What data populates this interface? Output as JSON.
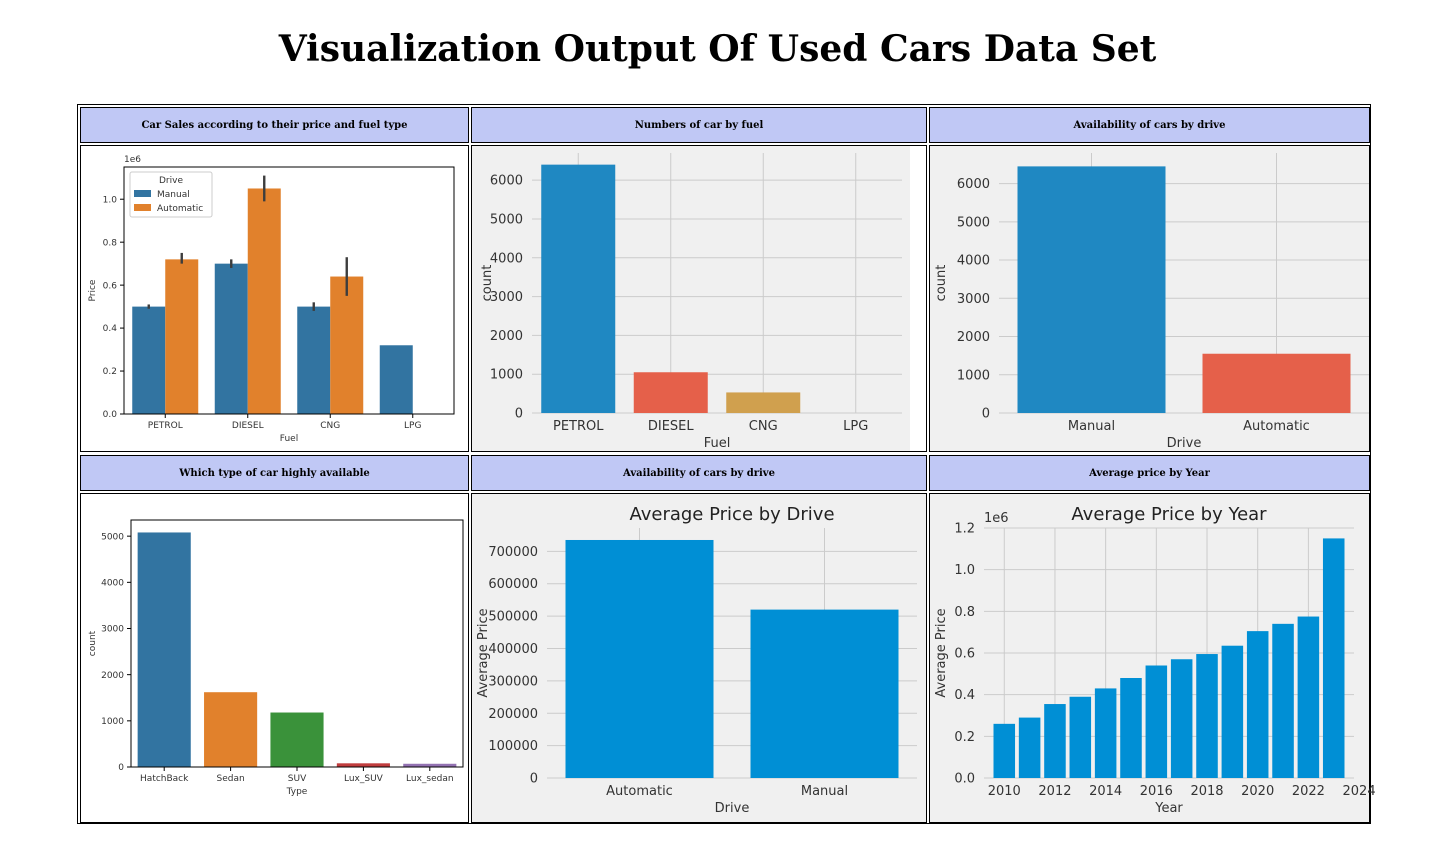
{
  "page": {
    "title": "Visualization Output Of Used Cars Data Set"
  },
  "panels": [
    {
      "header": "Car Sales according to their price and fuel type"
    },
    {
      "header": "Numbers of car by fuel"
    },
    {
      "header": "Availability of cars by drive"
    },
    {
      "header": "Which type of car highly available"
    },
    {
      "header": "Availability of cars by drive"
    },
    {
      "header": "Average price by Year"
    }
  ],
  "chart_data": [
    {
      "type": "bar",
      "title": "",
      "categories": [
        "PETROL",
        "DIESEL",
        "CNG",
        "LPG"
      ],
      "series": [
        {
          "name": "Manual",
          "values": [
            0.5,
            0.7,
            0.5,
            0.32
          ],
          "err_low": [
            0.49,
            0.68,
            0.48,
            null
          ],
          "err_high": [
            0.51,
            0.72,
            0.52,
            null
          ],
          "color": "#3274a1"
        },
        {
          "name": "Automatic",
          "values": [
            0.72,
            1.05,
            0.64,
            null
          ],
          "err_low": [
            0.7,
            0.99,
            0.55,
            null
          ],
          "err_high": [
            0.75,
            1.11,
            0.73,
            null
          ],
          "color": "#e1812c"
        }
      ],
      "xlabel": "Fuel",
      "ylabel": "Price",
      "offset_label": "1e6",
      "ylim": [
        0,
        1.15
      ],
      "yticks": [
        "0.0",
        "0.2",
        "0.4",
        "0.6",
        "0.8",
        "1.0"
      ],
      "legend": {
        "title": "Drive",
        "placement": "upper-left"
      },
      "grid": false
    },
    {
      "type": "bar",
      "title": "",
      "categories": [
        "PETROL",
        "DIESEL",
        "CNG",
        "LPG"
      ],
      "values": [
        6400,
        1050,
        530,
        0
      ],
      "colors": [
        "#1f88c2",
        "#e5604a",
        "#d0a04e",
        "#6d904f"
      ],
      "xlabel": "Fuel",
      "ylabel": "count",
      "ylim": [
        0,
        6700
      ],
      "yticks": [
        "0",
        "1000",
        "2000",
        "3000",
        "4000",
        "5000",
        "6000"
      ],
      "grid": true
    },
    {
      "type": "bar",
      "title": "",
      "categories": [
        "Manual",
        "Automatic"
      ],
      "values": [
        6450,
        1550
      ],
      "colors": [
        "#1f88c2",
        "#e5604a"
      ],
      "xlabel": "Drive",
      "ylabel": "count",
      "ylim": [
        0,
        6800
      ],
      "yticks": [
        "0",
        "1000",
        "2000",
        "3000",
        "4000",
        "5000",
        "6000"
      ],
      "grid": true
    },
    {
      "type": "bar",
      "title": "",
      "categories": [
        "HatchBack",
        "Sedan",
        "SUV",
        "Lux_SUV",
        "Lux_sedan"
      ],
      "values": [
        5080,
        1620,
        1180,
        80,
        70
      ],
      "colors": [
        "#3274a1",
        "#e1812c",
        "#3a923a",
        "#c03d3e",
        "#9372b2"
      ],
      "xlabel": "Type",
      "ylabel": "count",
      "ylim": [
        0,
        5350
      ],
      "yticks": [
        "0",
        "1000",
        "2000",
        "3000",
        "4000",
        "5000"
      ],
      "grid": false
    },
    {
      "type": "bar",
      "title": "Average  Price by Drive",
      "categories": [
        "Automatic",
        "Manual"
      ],
      "values": [
        735000,
        520000
      ],
      "colors": [
        "#008fd5",
        "#008fd5"
      ],
      "xlabel": "Drive",
      "ylabel": "Average Price",
      "ylim": [
        0,
        772000
      ],
      "yticks": [
        "0",
        "100000",
        "200000",
        "300000",
        "400000",
        "500000",
        "600000",
        "700000"
      ],
      "grid": true
    },
    {
      "type": "bar",
      "title": "Average  Price by Year",
      "x": [
        2010,
        2011,
        2012,
        2013,
        2014,
        2015,
        2016,
        2017,
        2018,
        2019,
        2020,
        2021,
        2022,
        2023
      ],
      "values": [
        0.26,
        0.29,
        0.355,
        0.39,
        0.43,
        0.48,
        0.54,
        0.57,
        0.595,
        0.635,
        0.705,
        0.74,
        0.775,
        1.15
      ],
      "color": "#008fd5",
      "xlabel": "Year",
      "ylabel": "Average Price",
      "offset_label": "1e6",
      "xlim": [
        2009.2,
        2023.8
      ],
      "xticks": [
        "2010",
        "2012",
        "2014",
        "2016",
        "2018",
        "2020",
        "2022",
        "2024"
      ],
      "ylim": [
        0,
        1.2
      ],
      "yticks": [
        "0.0",
        "0.2",
        "0.4",
        "0.6",
        "0.8",
        "1.0",
        "1.2"
      ],
      "grid": true
    }
  ]
}
